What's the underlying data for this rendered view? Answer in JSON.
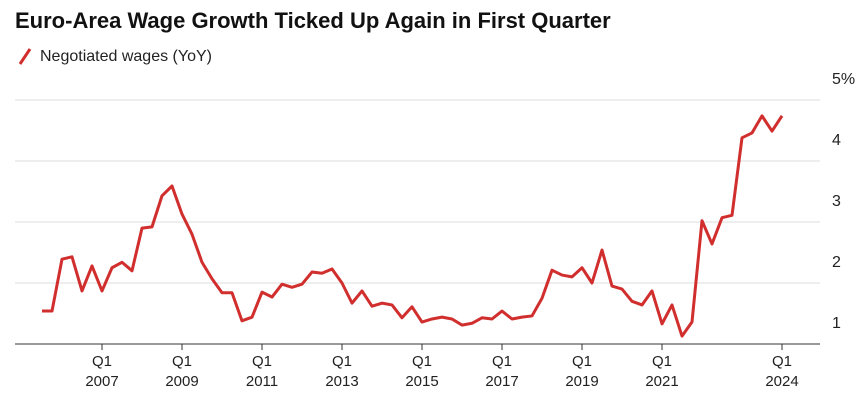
{
  "chart_data": {
    "type": "line",
    "title": "Euro-Area Wage Growth Ticked Up Again in First Quarter",
    "categories": [
      null,
      null,
      null,
      null,
      null,
      null,
      "Q1 2007",
      null,
      null,
      null,
      null,
      null,
      null,
      null,
      "Q1 2009",
      null,
      null,
      null,
      null,
      null,
      null,
      null,
      "Q1 2011",
      null,
      null,
      null,
      null,
      null,
      null,
      null,
      "Q1 2013",
      null,
      null,
      null,
      null,
      null,
      null,
      null,
      "Q1 2015",
      null,
      null,
      null,
      null,
      null,
      null,
      null,
      "Q1 2017",
      null,
      null,
      null,
      null,
      null,
      null,
      null,
      "Q1 2019",
      null,
      null,
      null,
      null,
      null,
      null,
      null,
      "Q1 2021",
      null,
      null,
      null,
      null,
      null,
      null,
      null,
      null,
      null,
      null,
      null,
      "Q1 2024"
    ],
    "series": [
      {
        "name": "Negotiated wages (YoY)",
        "color": "#d12e2e",
        "values": [
          1.54,
          1.54,
          2.39,
          2.43,
          1.87,
          2.28,
          1.87,
          2.25,
          2.34,
          2.2,
          2.9,
          2.92,
          3.43,
          3.59,
          3.13,
          2.8,
          2.34,
          2.07,
          1.84,
          1.84,
          1.38,
          1.44,
          1.85,
          1.77,
          1.98,
          1.93,
          1.98,
          2.18,
          2.16,
          2.23,
          2.0,
          1.67,
          1.87,
          1.62,
          1.67,
          1.64,
          1.43,
          1.61,
          1.36,
          1.41,
          1.44,
          1.41,
          1.31,
          1.34,
          1.43,
          1.41,
          1.54,
          1.41,
          1.44,
          1.46,
          1.75,
          2.21,
          2.13,
          2.1,
          2.25,
          2.0,
          2.54,
          1.95,
          1.9,
          1.7,
          1.64,
          1.87,
          1.33,
          1.64,
          1.13,
          1.36,
          3.02,
          2.64,
          3.07,
          3.11,
          4.38,
          4.46,
          4.74,
          4.49,
          4.74
        ]
      }
    ],
    "ylim": [
      1,
      5
    ],
    "yticks": [
      1,
      2,
      3,
      4,
      {
        "value": 5,
        "label": "5%"
      }
    ],
    "grid": true
  }
}
